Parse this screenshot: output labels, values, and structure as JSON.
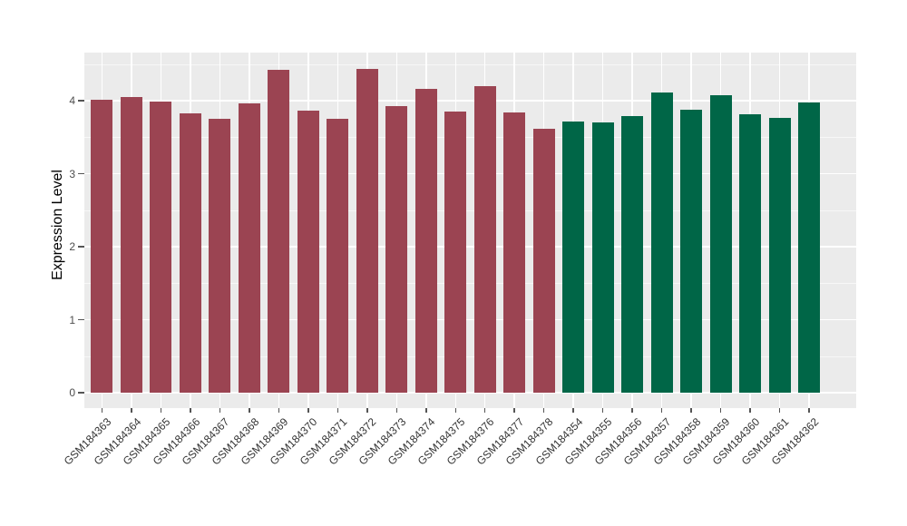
{
  "chart_data": {
    "type": "bar",
    "title": "",
    "xlabel": "",
    "ylabel": "Expression Level",
    "ylim": [
      0,
      4.66
    ],
    "yticks": [
      0,
      1,
      2,
      3,
      4
    ],
    "grid": true,
    "legend": "none",
    "panel_background": "#EBEBEB",
    "gridline_color": "#FFFFFF",
    "tick_label_color": "#4D4D4D",
    "categories": [
      "GSM184363",
      "GSM184364",
      "GSM184365",
      "GSM184366",
      "GSM184367",
      "GSM184368",
      "GSM184369",
      "GSM184370",
      "GSM184371",
      "GSM184372",
      "GSM184373",
      "GSM184374",
      "GSM184375",
      "GSM184376",
      "GSM184377",
      "GSM184378",
      "GSM184354",
      "GSM184355",
      "GSM184356",
      "GSM184357",
      "GSM184358",
      "GSM184359",
      "GSM184360",
      "GSM184361",
      "GSM184362"
    ],
    "values": [
      4.01,
      4.05,
      3.99,
      3.83,
      3.75,
      3.96,
      4.42,
      3.86,
      3.75,
      4.44,
      3.93,
      4.16,
      3.85,
      4.2,
      3.84,
      3.62,
      3.72,
      3.7,
      3.79,
      4.11,
      3.87,
      4.08,
      3.81,
      3.76,
      3.98
    ],
    "colors": [
      "#9B4452",
      "#9B4452",
      "#9B4452",
      "#9B4452",
      "#9B4452",
      "#9B4452",
      "#9B4452",
      "#9B4452",
      "#9B4452",
      "#9B4452",
      "#9B4452",
      "#9B4452",
      "#9B4452",
      "#9B4452",
      "#9B4452",
      "#9B4452",
      "#006647",
      "#006647",
      "#006647",
      "#006647",
      "#006647",
      "#006647",
      "#006647",
      "#006647",
      "#006647"
    ]
  }
}
